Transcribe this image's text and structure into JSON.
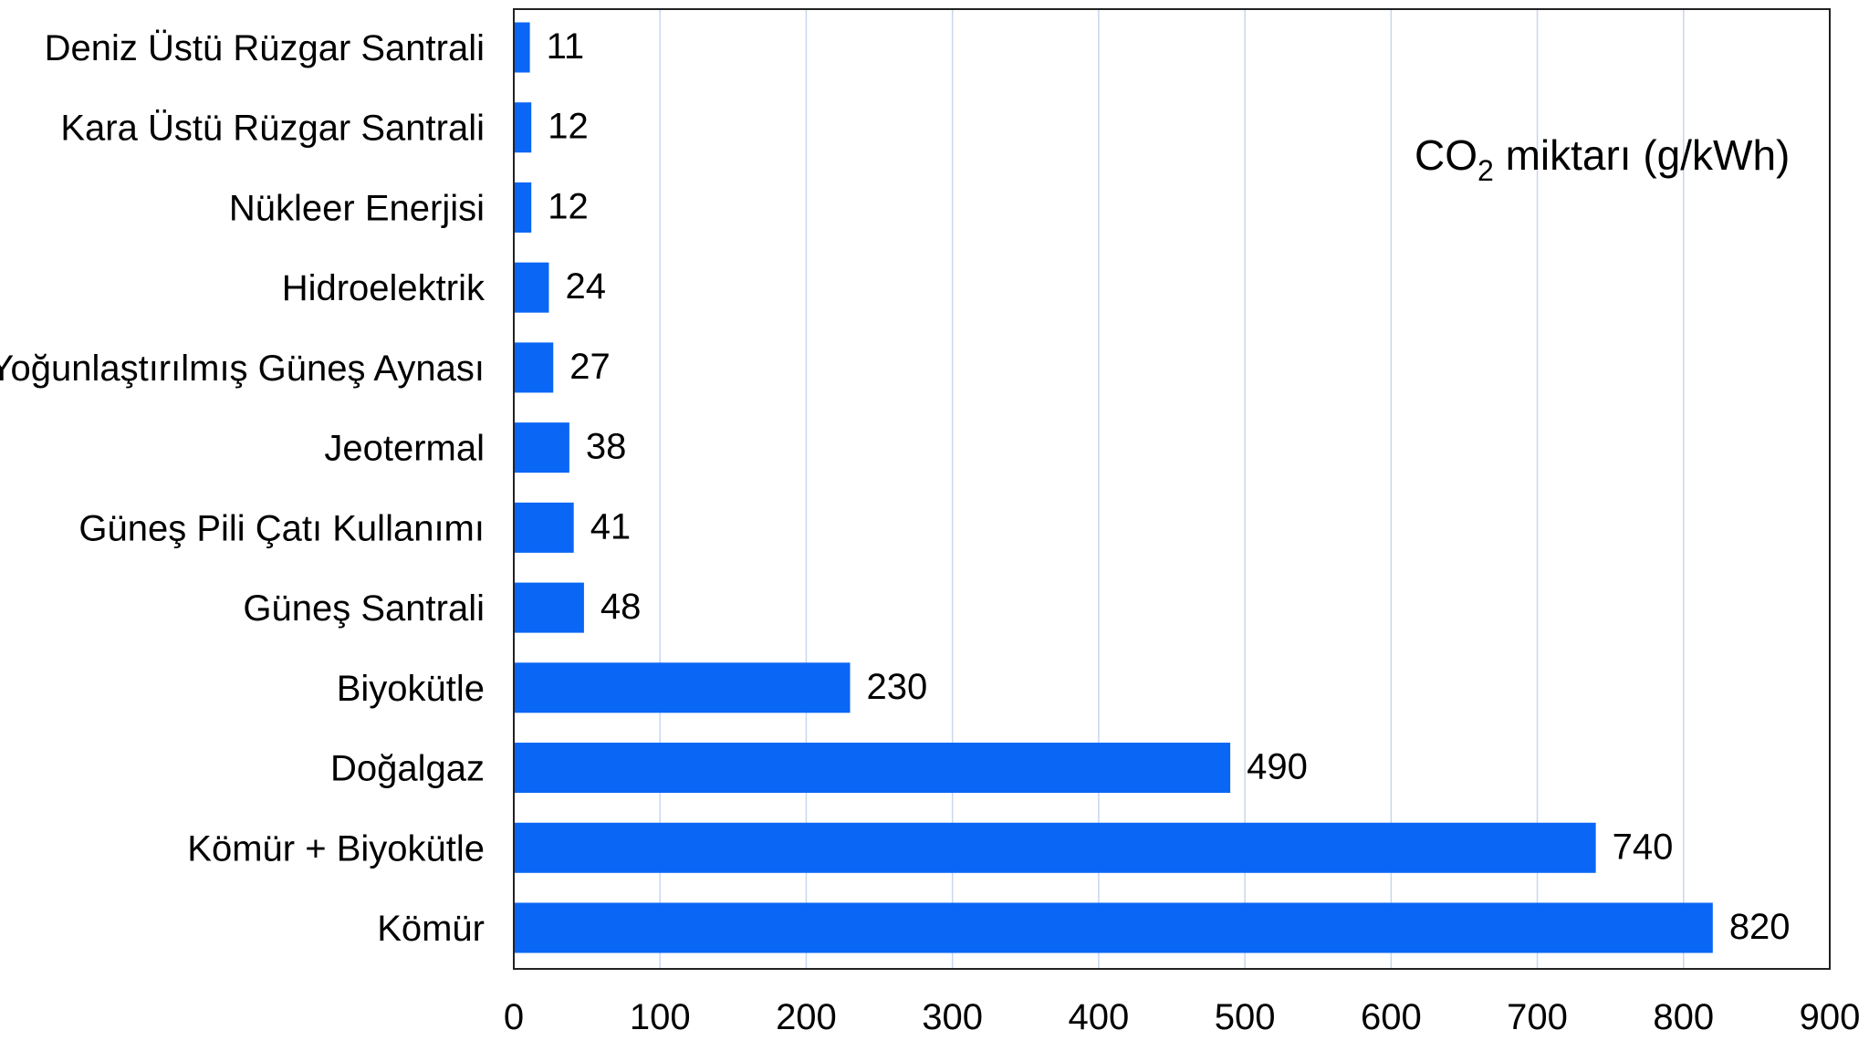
{
  "chart_data": {
    "type": "bar",
    "orientation": "horizontal",
    "title": "CO2 miktarı (g/kWh)",
    "title_parts": {
      "main": "CO",
      "subscript": "2",
      "rest": " miktarı (g/kWh)"
    },
    "categories": [
      "Deniz Üstü Rüzgar Santrali",
      "Kara Üstü Rüzgar Santrali",
      "Nükleer Enerjisi",
      "Hidroelektrik",
      "Yoğunlaştırılmış Güneş Aynası",
      "Jeotermal",
      "Güneş Pili Çatı Kullanımı",
      "Güneş Santrali",
      "Biyokütle",
      "Doğalgaz",
      "Kömür + Biyokütle",
      "Kömür"
    ],
    "values": [
      11,
      12,
      12,
      24,
      27,
      38,
      41,
      48,
      230,
      490,
      740,
      820
    ],
    "value_labels": [
      "11",
      "12",
      "12",
      "24",
      "27",
      "38",
      "41",
      "48",
      "230",
      "490",
      "740",
      "820"
    ],
    "xlim": [
      0,
      900
    ],
    "xticks": [
      "0",
      "100",
      "200",
      "300",
      "400",
      "500",
      "600",
      "700",
      "800",
      "900"
    ],
    "xlabel": "",
    "ylabel": "",
    "grid": "vertical",
    "legend": "none",
    "bar_color": "#0a66f5",
    "grid_color": "#c8d6ee"
  }
}
